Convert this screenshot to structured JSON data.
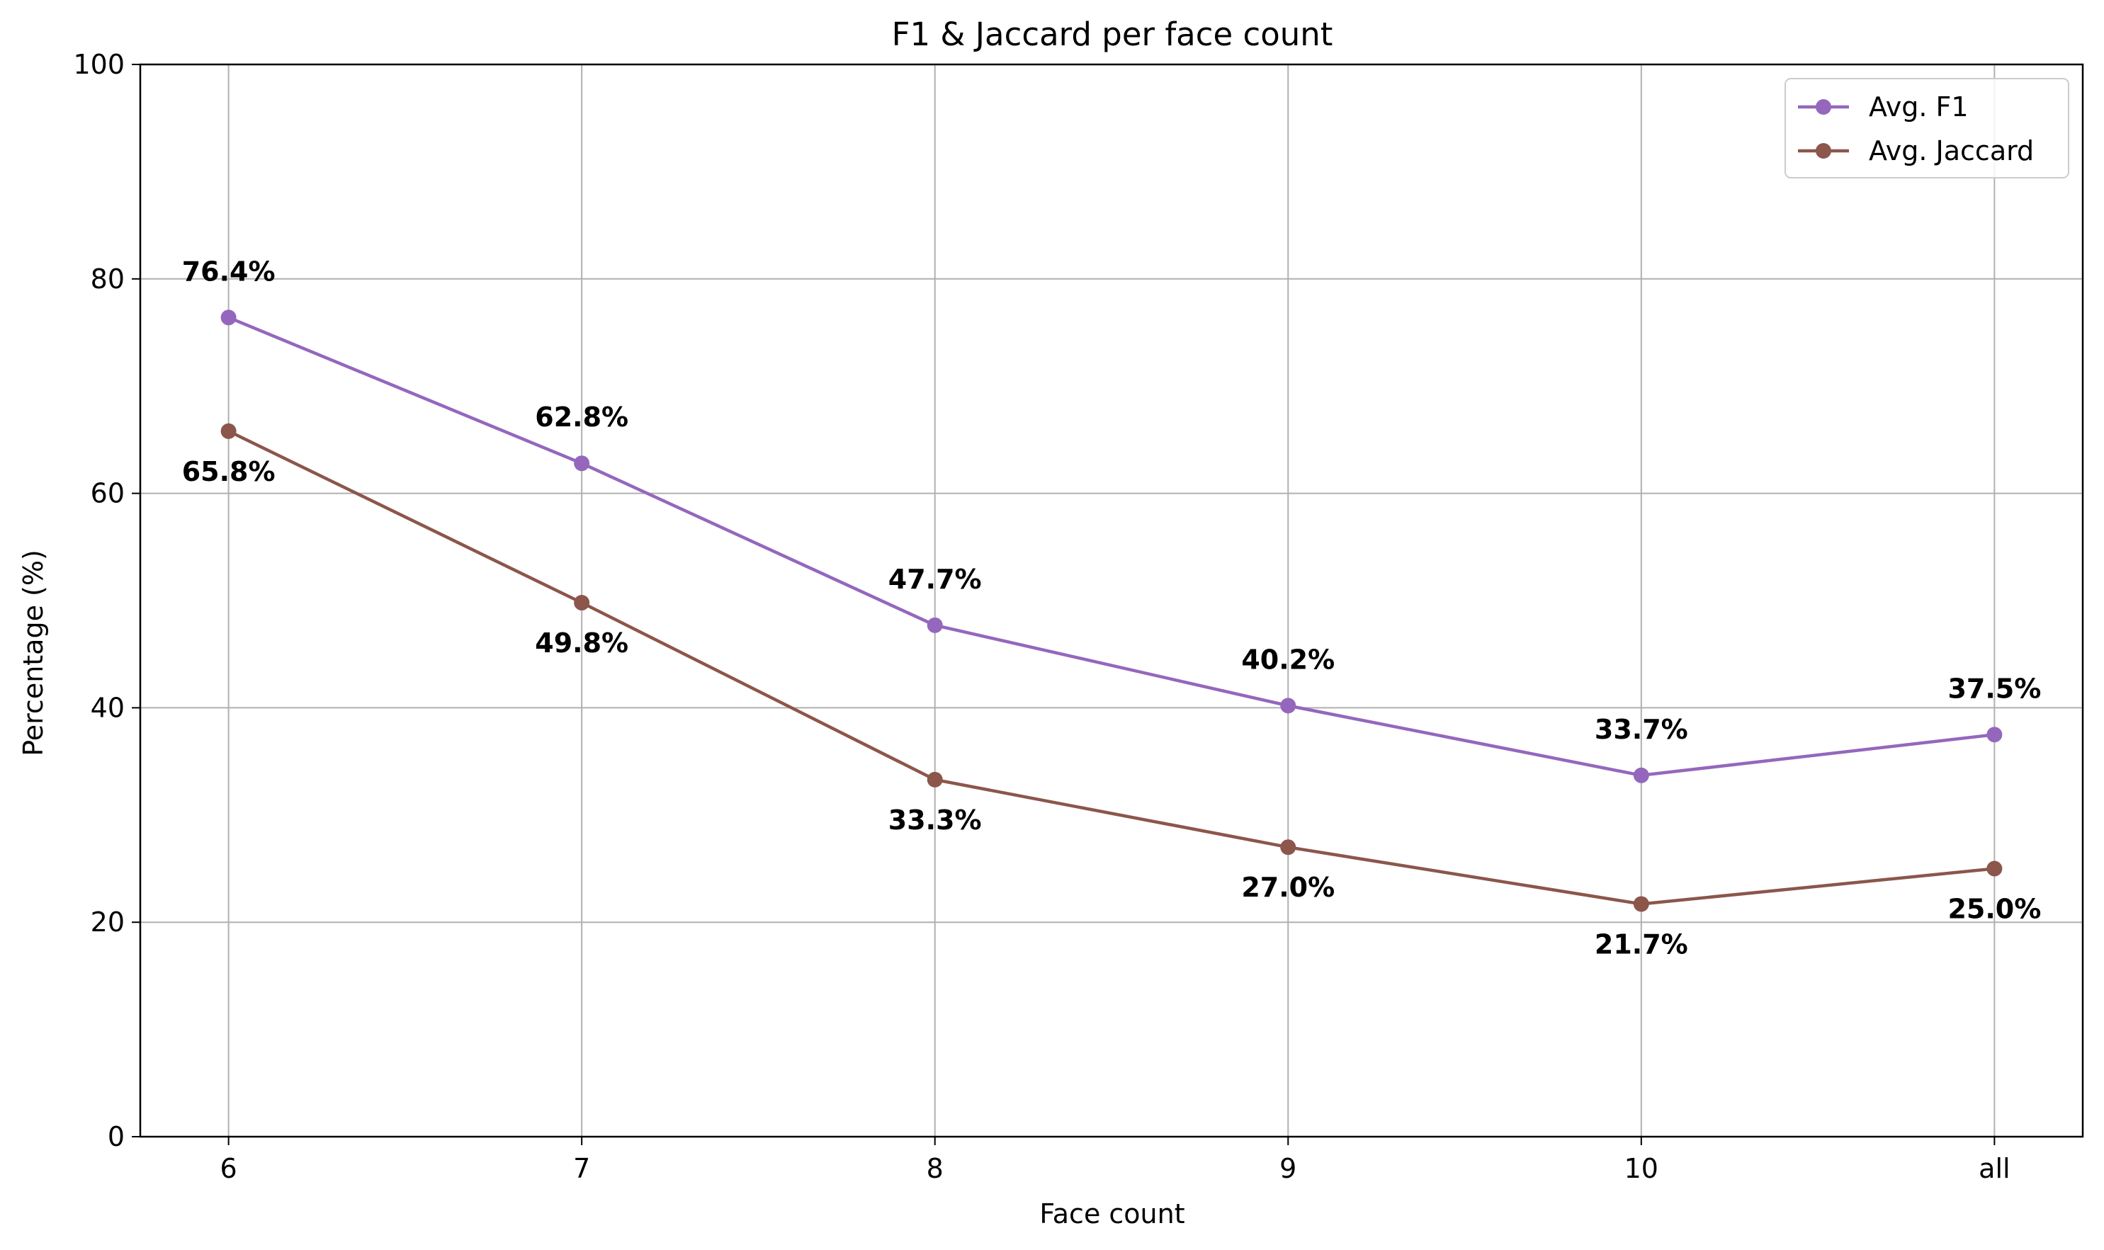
{
  "chart_data": {
    "type": "line",
    "title": "F1 & Jaccard per face count",
    "xlabel": "Face count",
    "ylabel": "Percentage (%)",
    "categories": [
      "6",
      "7",
      "8",
      "9",
      "10",
      "all"
    ],
    "ylim": [
      0,
      100
    ],
    "yticks": [
      "0",
      "20",
      "40",
      "60",
      "80",
      "100"
    ],
    "grid": true,
    "legend_position": "top-right",
    "series": [
      {
        "name": "Avg. F1",
        "color": "#9467bd",
        "values": [
          76.4,
          62.8,
          47.7,
          40.2,
          33.7,
          37.5
        ],
        "labels": [
          "76.4%",
          "62.8%",
          "47.7%",
          "40.2%",
          "33.7%",
          "37.5%"
        ],
        "label_position": "above"
      },
      {
        "name": "Avg. Jaccard",
        "color": "#8c564b",
        "values": [
          65.8,
          49.8,
          33.3,
          27.0,
          21.7,
          25.0
        ],
        "labels": [
          "65.8%",
          "49.8%",
          "33.3%",
          "27.0%",
          "21.7%",
          "25.0%"
        ],
        "label_position": "below"
      }
    ]
  }
}
